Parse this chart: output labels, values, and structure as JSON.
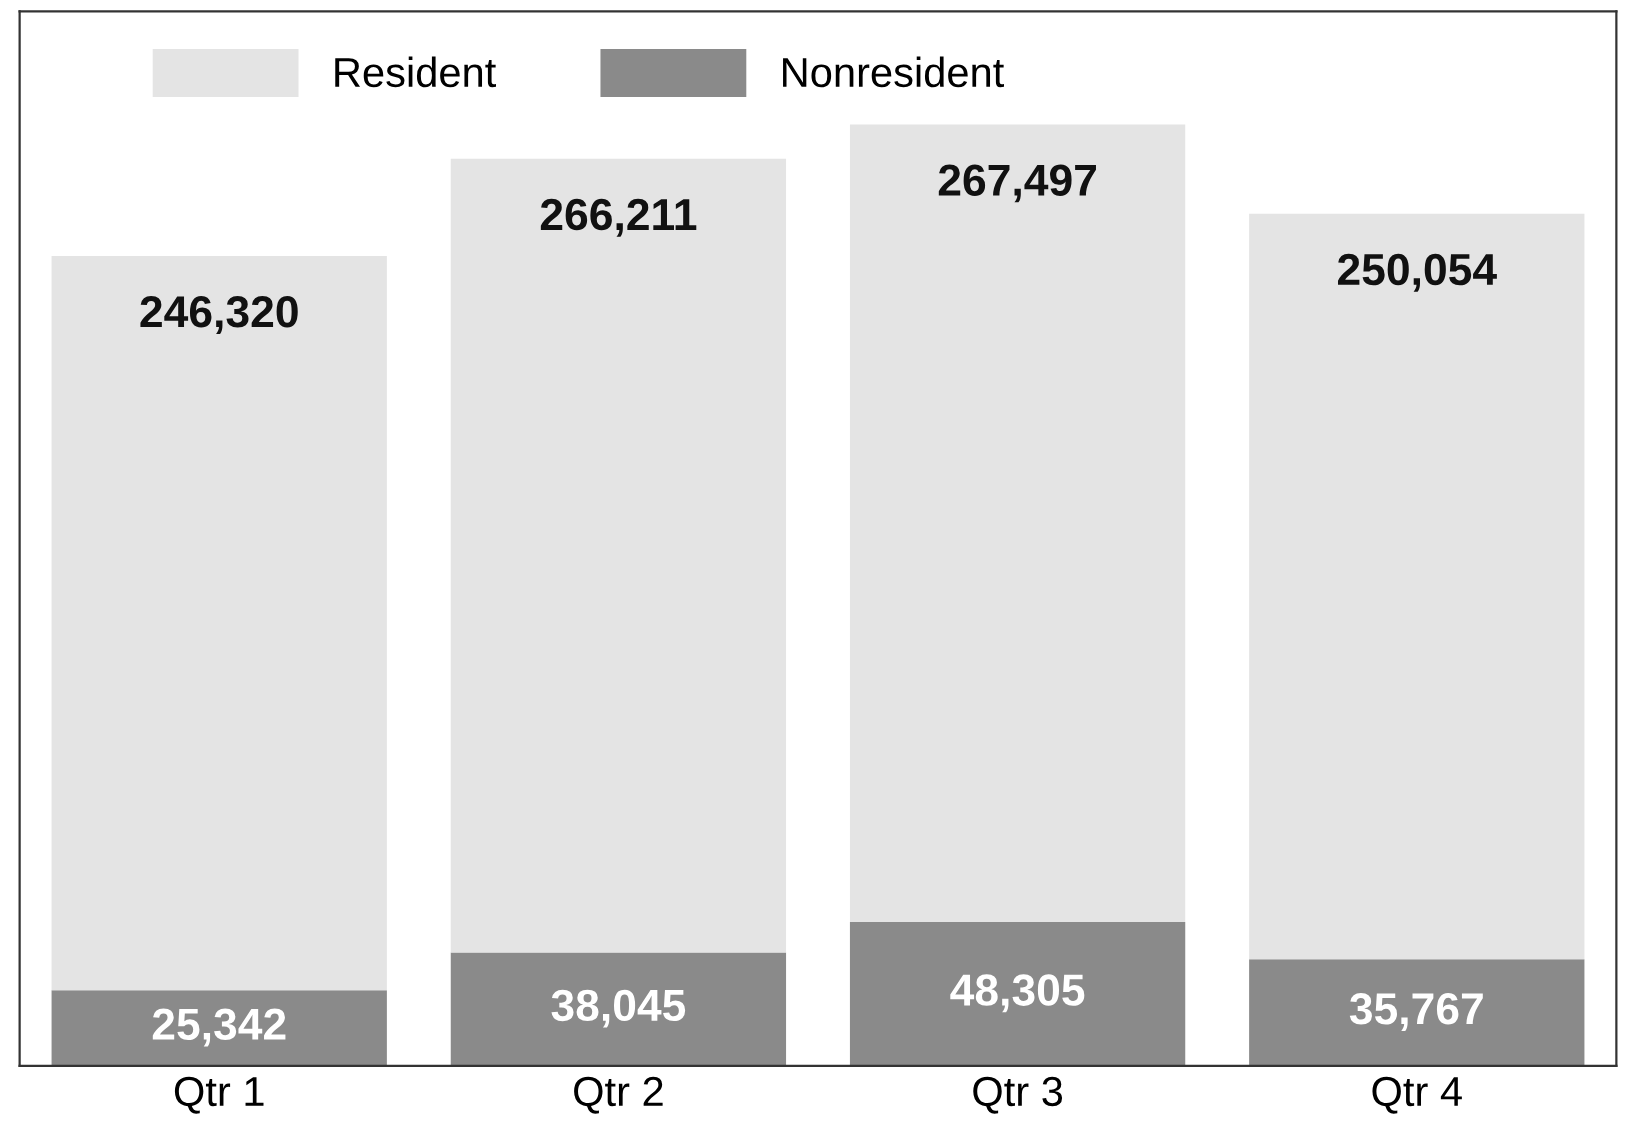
{
  "chart_data": {
    "type": "bar",
    "stacked": true,
    "categories": [
      "Qtr 1",
      "Qtr 2",
      "Qtr 3",
      "Qtr 4"
    ],
    "series": [
      {
        "name": "Nonresident",
        "color": "#8a8a8a",
        "values": [
          25342,
          38045,
          48305,
          35767
        ],
        "value_labels": [
          "25,342",
          "38,045",
          "48,305",
          "35,767"
        ]
      },
      {
        "name": "Resident",
        "color": "#e4e4e4",
        "values": [
          246320,
          266211,
          267497,
          250054
        ],
        "value_labels": [
          "246,320",
          "266,211",
          "267,497",
          "250,054"
        ]
      }
    ],
    "legend": "top",
    "grid": false,
    "tick_labels": "x"
  }
}
